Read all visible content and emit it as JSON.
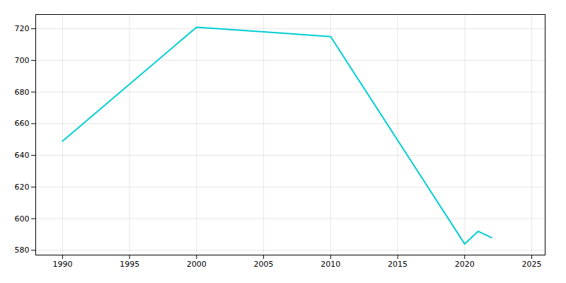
{
  "chart_data": {
    "type": "line",
    "x": [
      1990,
      2000,
      2005,
      2010,
      2020,
      2021,
      2022
    ],
    "values": [
      649,
      721,
      718,
      715,
      584,
      592,
      588
    ],
    "color": "#00CED1",
    "xlim": [
      1988,
      2026
    ],
    "ylim": [
      577,
      729
    ],
    "xticks": [
      1990,
      1995,
      2000,
      2005,
      2010,
      2015,
      2020,
      2025
    ],
    "yticks": [
      580,
      600,
      620,
      640,
      660,
      680,
      700,
      720
    ],
    "grid": true
  }
}
